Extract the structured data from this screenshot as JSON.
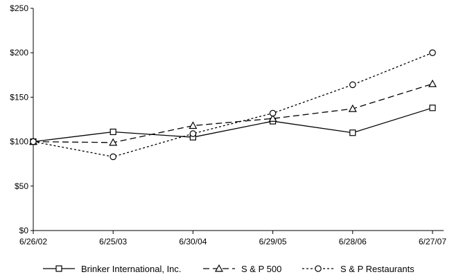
{
  "chart_data": {
    "type": "line",
    "title": "",
    "xlabel": "",
    "ylabel": "",
    "categories": [
      "6/26/02",
      "6/25/03",
      "6/30/04",
      "6/29/05",
      "6/28/06",
      "6/27/07"
    ],
    "y_ticks": [
      "$0",
      "$50",
      "$100",
      "$150",
      "$200",
      "$250"
    ],
    "ylim": [
      0,
      250
    ],
    "grid": false,
    "legend_position": "bottom",
    "series": [
      {
        "name": "Brinker International, Inc.",
        "values": [
          100,
          111,
          105,
          123,
          110,
          138
        ],
        "marker": "square",
        "line_style": "solid",
        "color": "#000000"
      },
      {
        "name": "S & P 500",
        "values": [
          100,
          99,
          118,
          126,
          137,
          165
        ],
        "marker": "triangle",
        "line_style": "long-dash",
        "color": "#000000"
      },
      {
        "name": "S & P Restaurants",
        "values": [
          100,
          83,
          109,
          132,
          164,
          200
        ],
        "marker": "circle",
        "line_style": "short-dash",
        "color": "#000000"
      }
    ]
  }
}
